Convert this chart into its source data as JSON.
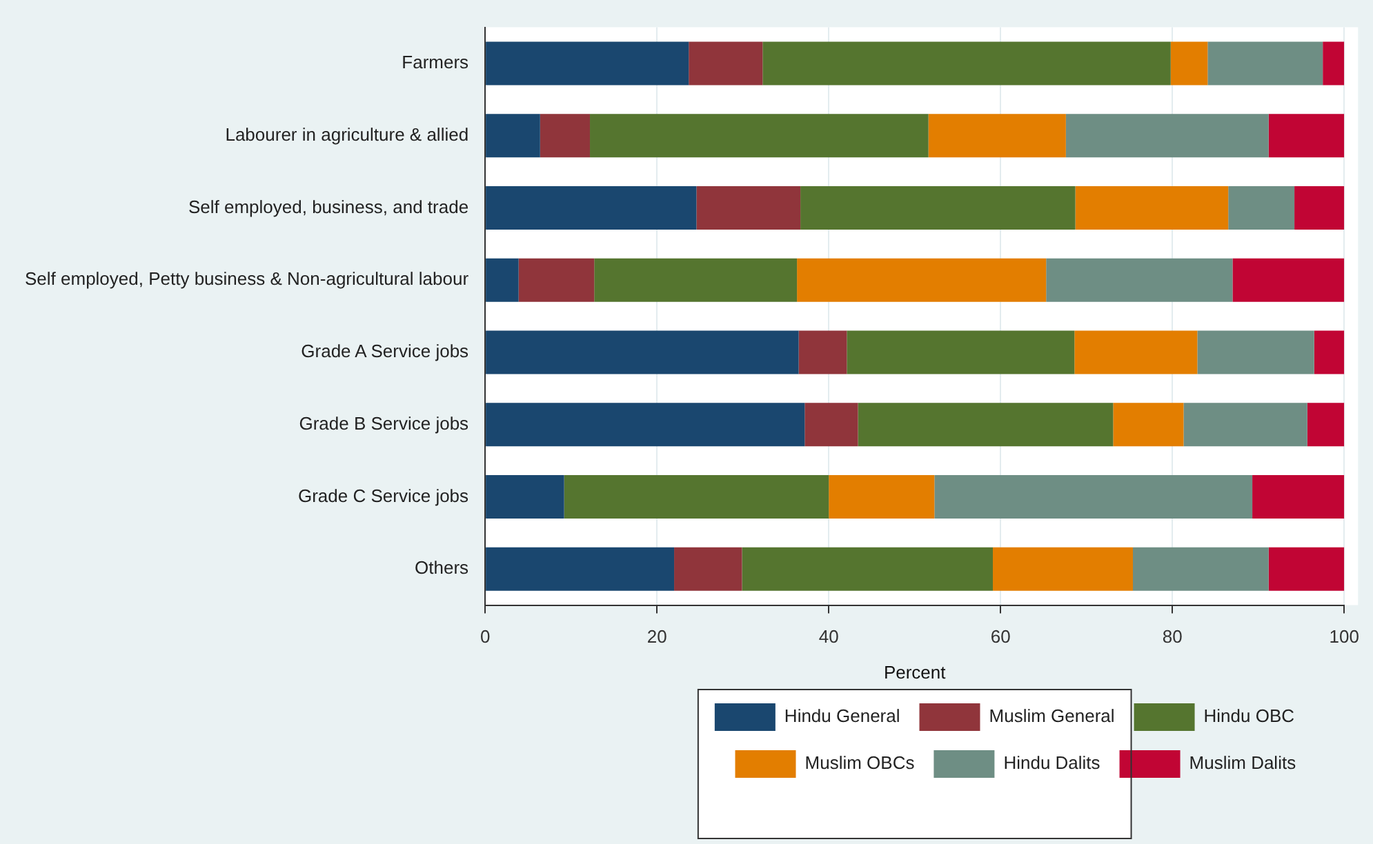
{
  "chart_data": {
    "type": "bar",
    "orientation": "horizontal",
    "stacked": true,
    "xlabel": "Percent",
    "categories": [
      "Farmers",
      "Labourer in agriculture & allied",
      "Self employed, business, and trade",
      "Self employed, Petty business & Non-agricultural labour",
      "Grade A Service jobs",
      "Grade B Service jobs",
      "Grade C Service jobs",
      "Others"
    ],
    "series": [
      {
        "name": "Hindu General",
        "color": "#1a476f",
        "values": [
          23.7,
          6.4,
          24.6,
          3.9,
          36.5,
          37.2,
          9.2,
          22.0
        ]
      },
      {
        "name": "Muslim General",
        "color": "#90353b",
        "values": [
          8.6,
          5.8,
          12.1,
          8.8,
          5.6,
          6.2,
          0,
          7.9
        ]
      },
      {
        "name": "Hindu OBC",
        "color": "#55752f",
        "values": [
          47.5,
          39.4,
          32.0,
          23.6,
          26.5,
          29.7,
          30.8,
          29.2
        ]
      },
      {
        "name": "Muslim OBCs",
        "color": "#e37e00",
        "values": [
          4.3,
          16.0,
          17.8,
          29.0,
          14.3,
          8.2,
          12.3,
          16.3
        ]
      },
      {
        "name": "Hindu Dalits",
        "color": "#6e8e84",
        "values": [
          13.4,
          23.6,
          7.7,
          21.7,
          13.6,
          14.4,
          37.0,
          15.8
        ]
      },
      {
        "name": "Muslim Dalits",
        "color": "#c10534",
        "values": [
          2.5,
          8.8,
          5.8,
          13.0,
          3.5,
          4.3,
          10.7,
          8.8
        ]
      }
    ],
    "xlim": [
      0,
      100
    ],
    "xticks": [
      0,
      20,
      40,
      60,
      80,
      100
    ],
    "grid": "x",
    "legend": "bottom"
  }
}
